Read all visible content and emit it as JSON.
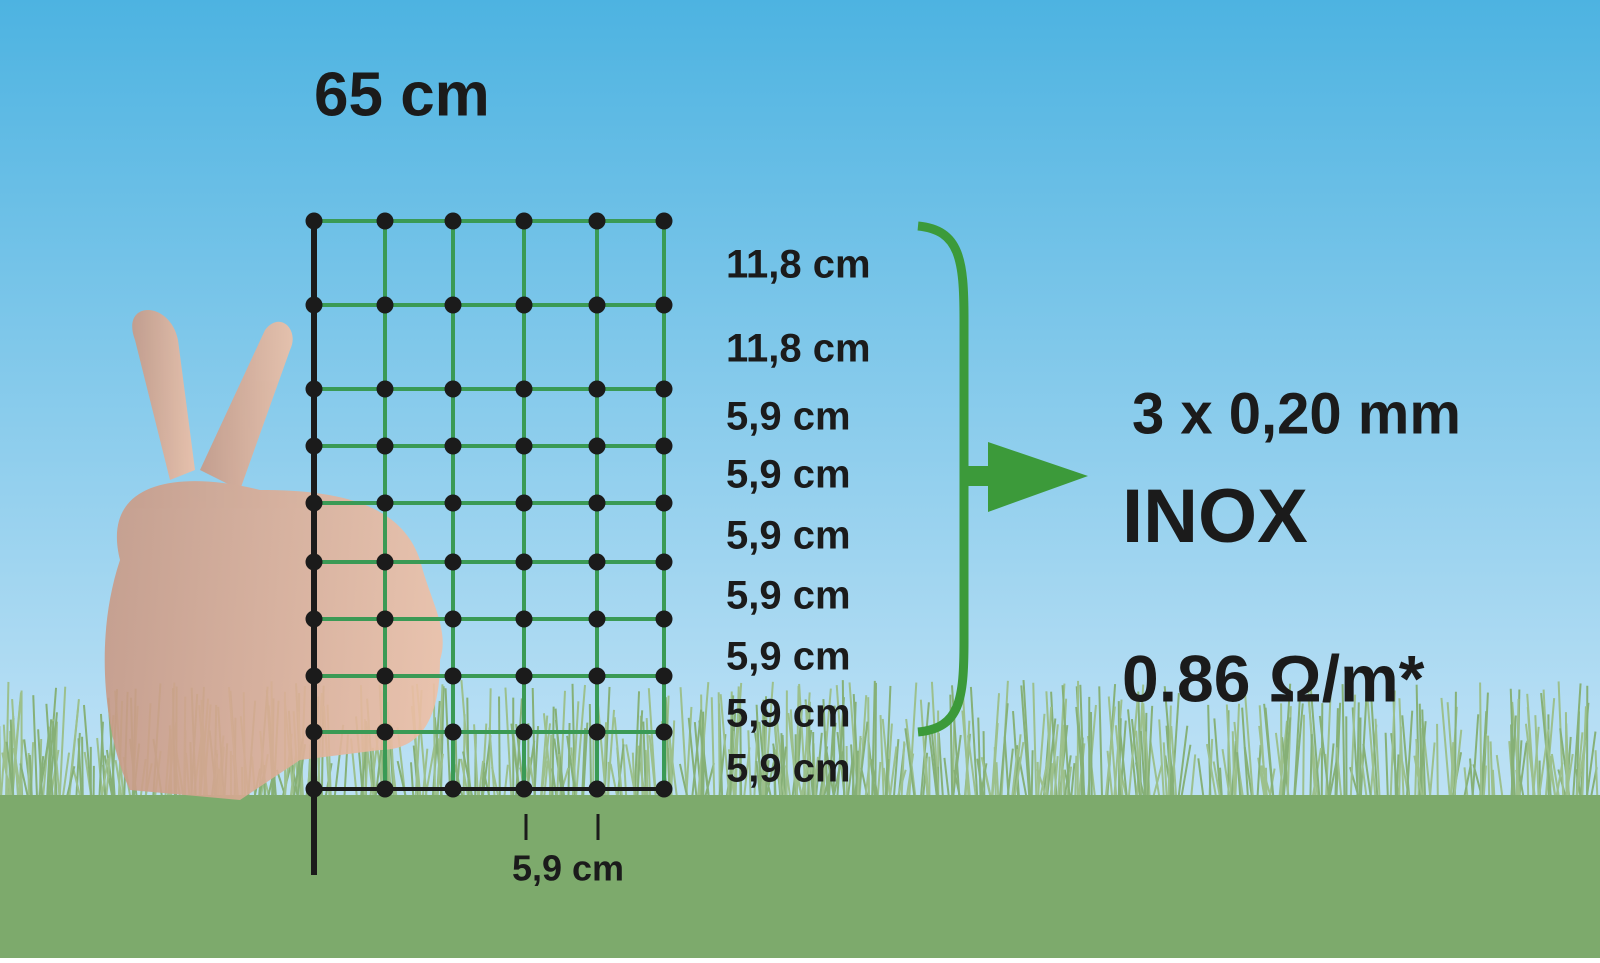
{
  "height_label": "65 cm",
  "row_spacings": [
    "11,8 cm",
    "11,8 cm",
    "5,9 cm",
    "5,9 cm",
    "5,9 cm",
    "5,9 cm",
    "5,9 cm",
    "5,9 cm",
    "5,9 cm"
  ],
  "column_spacing": "5,9 cm",
  "wire": "3 x 0,20 mm",
  "material": "INOX",
  "resistance": "0.86 Ω/m*"
}
